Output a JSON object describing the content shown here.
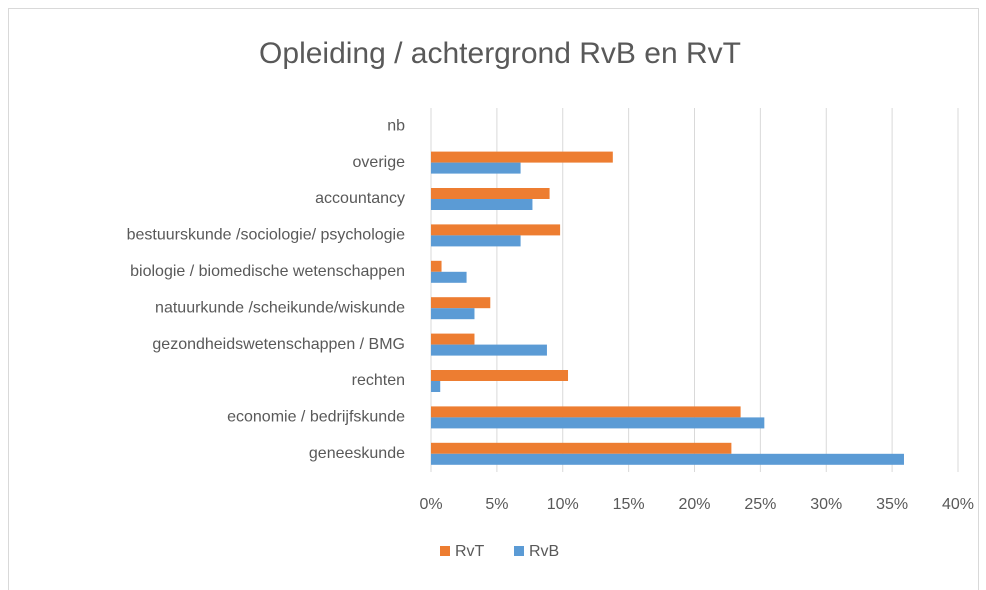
{
  "chart_data": {
    "type": "hbar",
    "title": "Opleiding / achtergrond RvB en RvT",
    "categories": [
      "geneeskunde",
      "economie / bedrijfskunde",
      "rechten",
      "gezondheidswetenschappen / BMG",
      "natuurkunde /scheikunde/wiskunde",
      "biologie / biomedische wetenschappen",
      "bestuurskunde /sociologie/ psychologie",
      "accountancy",
      "overige",
      "nb"
    ],
    "series": [
      {
        "name": "RvT",
        "color": "#ed7d31",
        "values": [
          22.8,
          23.5,
          10.4,
          3.3,
          4.5,
          0.8,
          9.8,
          9.0,
          13.8,
          0
        ]
      },
      {
        "name": "RvB",
        "color": "#5b9bd5",
        "values": [
          35.9,
          25.3,
          0.7,
          8.8,
          3.3,
          2.7,
          6.8,
          7.7,
          6.8,
          0
        ]
      }
    ],
    "xlim": [
      0,
      40
    ],
    "xticks": [
      {
        "value": 0,
        "label": "0%"
      },
      {
        "value": 5,
        "label": "5%"
      },
      {
        "value": 10,
        "label": "10%"
      },
      {
        "value": 15,
        "label": "15%"
      },
      {
        "value": 20,
        "label": "20%"
      },
      {
        "value": 25,
        "label": "25%"
      },
      {
        "value": 30,
        "label": "30%"
      },
      {
        "value": 35,
        "label": "35%"
      },
      {
        "value": 40,
        "label": "40%"
      }
    ],
    "grid": true,
    "legend": "bottom"
  }
}
